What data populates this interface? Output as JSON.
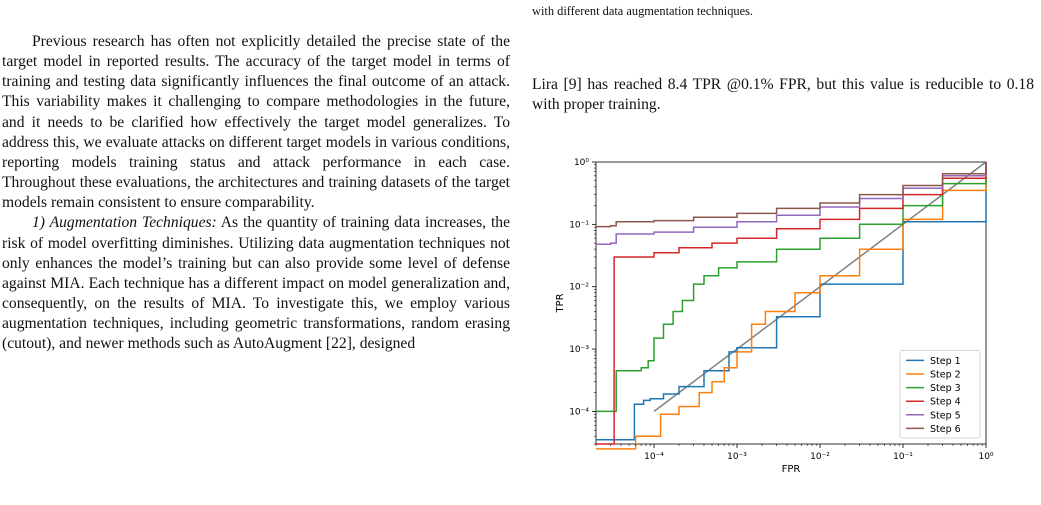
{
  "left_column": {
    "para1": "Previous research has often not explicitly detailed the precise state of the target model in reported results. The accuracy of the target model in terms of training and testing data significantly influences the final outcome of an attack. This variability makes it challenging to compare methodologies in the future, and it needs to be clarified how effectively the target model generalizes. To address this, we evaluate attacks on different target models in various conditions, reporting models training status and attack performance in each case. Throughout these evaluations, the architectures and training datasets of the target models remain consistent to ensure comparability.",
    "para2_heading": "1) Augmentation Techniques:",
    "para2_body": " As the quantity of training data increases, the risk of model overfitting diminishes. Utilizing data augmentation techniques not only enhances the model’s training but can also provide some level of defense against MIA. Each technique has a different impact on model generalization and, consequently, on the results of MIA. To investigate this, we employ various augmentation techniques, including geometric transformations, random erasing (cutout), and newer methods such as AutoAugment [22], designed"
  },
  "right_column": {
    "caption_tail": "with different data augmentation techniques.",
    "para": "Lira [9] has reached 8.4 TPR @0.1% FPR, but this value is reducible to 0.18 with proper training."
  },
  "chart_data": {
    "type": "line",
    "xlabel": "FPR",
    "ylabel": "TPR",
    "xscale": "log",
    "yscale": "log",
    "xlim": [
      2e-05,
      1
    ],
    "ylim": [
      3e-05,
      1
    ],
    "x_ticks": [
      "10⁻⁴",
      "10⁻³",
      "10⁻²",
      "10⁻¹",
      "10⁰"
    ],
    "y_ticks": [
      "10⁻⁴",
      "10⁻³",
      "10⁻²",
      "10⁻¹",
      "10⁰"
    ],
    "legend_position": "lower-right",
    "reference_line": {
      "color": "#808080",
      "x": [
        0.0001,
        1
      ],
      "y": [
        0.0001,
        1
      ]
    },
    "series": [
      {
        "name": "Step 1",
        "color": "#1f77b4",
        "points": [
          [
            2e-05,
            3.5e-05
          ],
          [
            3.3e-05,
            3.5e-05
          ],
          [
            5.5e-05,
            3.5e-05
          ],
          [
            5.8e-05,
            0.00013
          ],
          [
            7.5e-05,
            0.00015
          ],
          [
            9e-05,
            0.00016
          ],
          [
            0.00013,
            0.00019
          ],
          [
            0.0002,
            0.00025
          ],
          [
            0.0004,
            0.00045
          ],
          [
            0.0008,
            0.0009
          ],
          [
            0.001,
            0.00105
          ],
          [
            0.003,
            0.0033
          ],
          [
            0.01,
            0.011
          ],
          [
            0.1,
            0.11
          ],
          [
            1,
            1
          ]
        ]
      },
      {
        "name": "Step 2",
        "color": "#ff7f0e",
        "points": [
          [
            2e-05,
            2.5e-05
          ],
          [
            5.5e-05,
            2.5e-05
          ],
          [
            6e-05,
            4e-05
          ],
          [
            0.00011,
            4e-05
          ],
          [
            0.00012,
            9e-05
          ],
          [
            0.0002,
            0.00012
          ],
          [
            0.00035,
            0.0002
          ],
          [
            0.0005,
            0.0003
          ],
          [
            0.0007,
            0.0005
          ],
          [
            0.001,
            0.0009
          ],
          [
            0.0015,
            0.0025
          ],
          [
            0.0022,
            0.004
          ],
          [
            0.005,
            0.008
          ],
          [
            0.01,
            0.015
          ],
          [
            0.03,
            0.04
          ],
          [
            0.1,
            0.12
          ],
          [
            0.3,
            0.35
          ],
          [
            1,
            1
          ]
        ]
      },
      {
        "name": "Step 3",
        "color": "#2ca02c",
        "points": [
          [
            2e-05,
            0.0001
          ],
          [
            3.3e-05,
            0.0001
          ],
          [
            3.5e-05,
            0.00045
          ],
          [
            7e-05,
            0.0005
          ],
          [
            8.5e-05,
            0.00065
          ],
          [
            0.0001,
            0.0015
          ],
          [
            0.00013,
            0.0025
          ],
          [
            0.00017,
            0.004
          ],
          [
            0.00022,
            0.006
          ],
          [
            0.0003,
            0.011
          ],
          [
            0.0004,
            0.015
          ],
          [
            0.0006,
            0.02
          ],
          [
            0.001,
            0.025
          ],
          [
            0.003,
            0.04
          ],
          [
            0.01,
            0.06
          ],
          [
            0.03,
            0.1
          ],
          [
            0.1,
            0.2
          ],
          [
            0.3,
            0.45
          ],
          [
            1,
            1
          ]
        ]
      },
      {
        "name": "Step 4",
        "color": "#d62728",
        "points": [
          [
            2e-05,
            3e-05
          ],
          [
            3.3e-05,
            3e-05
          ],
          [
            3.3e-05,
            0.03
          ],
          [
            0.0001,
            0.035
          ],
          [
            0.0002,
            0.042
          ],
          [
            0.0005,
            0.05
          ],
          [
            0.001,
            0.06
          ],
          [
            0.003,
            0.085
          ],
          [
            0.01,
            0.12
          ],
          [
            0.03,
            0.18
          ],
          [
            0.1,
            0.3
          ],
          [
            0.3,
            0.55
          ],
          [
            1,
            1
          ]
        ]
      },
      {
        "name": "Step 5",
        "color": "#9467bd",
        "points": [
          [
            2e-05,
            0.048
          ],
          [
            3e-05,
            0.05
          ],
          [
            3.5e-05,
            0.07
          ],
          [
            0.0001,
            0.075
          ],
          [
            0.0003,
            0.09
          ],
          [
            0.001,
            0.11
          ],
          [
            0.003,
            0.14
          ],
          [
            0.01,
            0.19
          ],
          [
            0.03,
            0.26
          ],
          [
            0.1,
            0.38
          ],
          [
            0.3,
            0.6
          ],
          [
            1,
            1
          ]
        ]
      },
      {
        "name": "Step 6",
        "color": "#8c564b",
        "points": [
          [
            2e-05,
            0.092
          ],
          [
            3e-05,
            0.095
          ],
          [
            3.5e-05,
            0.11
          ],
          [
            0.0001,
            0.115
          ],
          [
            0.0003,
            0.13
          ],
          [
            0.001,
            0.15
          ],
          [
            0.003,
            0.18
          ],
          [
            0.01,
            0.22
          ],
          [
            0.03,
            0.3
          ],
          [
            0.1,
            0.42
          ],
          [
            0.3,
            0.65
          ],
          [
            1,
            1
          ]
        ]
      }
    ]
  }
}
